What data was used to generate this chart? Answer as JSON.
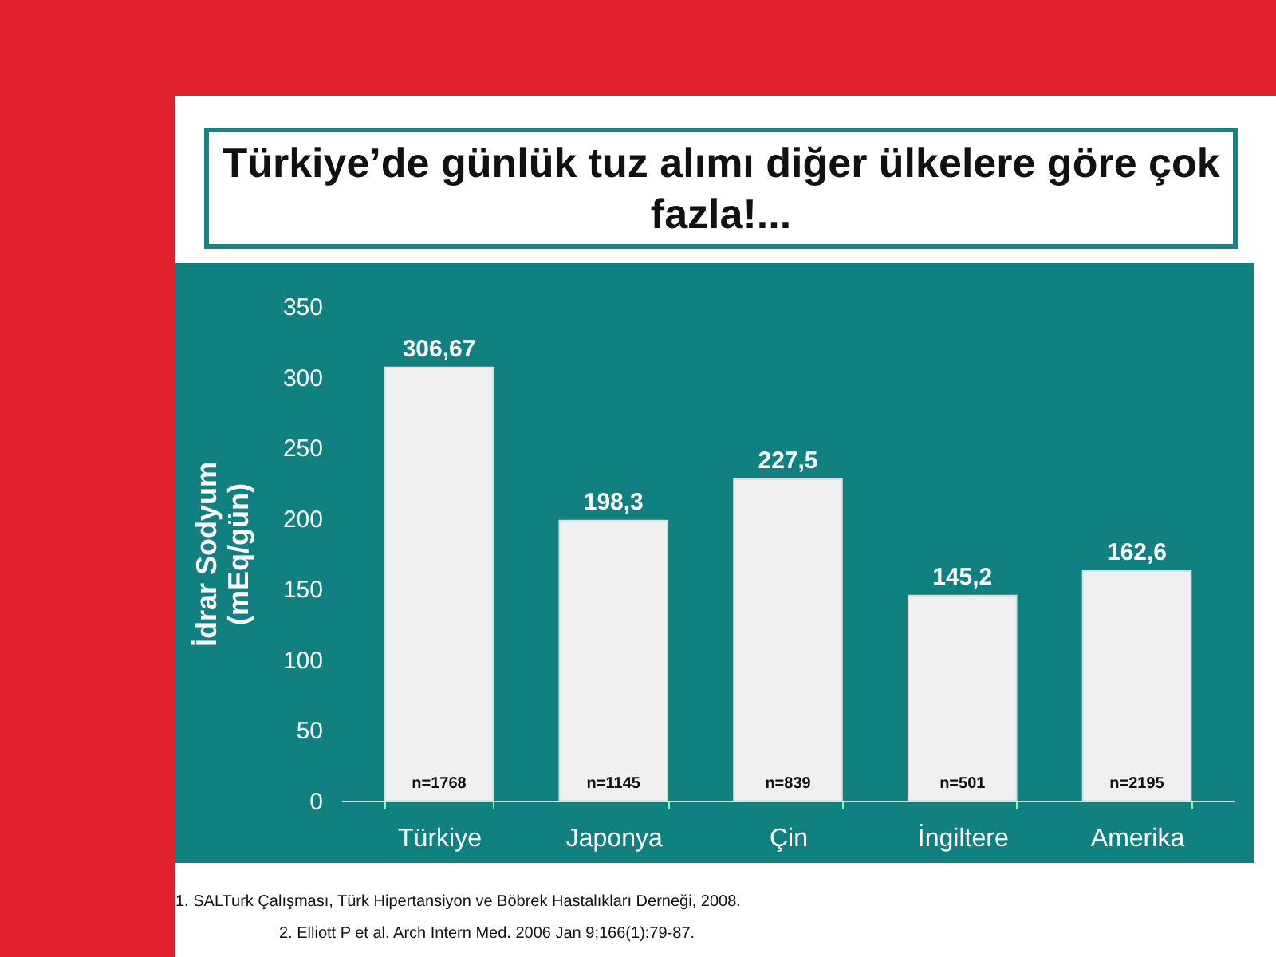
{
  "chart_data": {
    "type": "bar",
    "title": "Türkiye’de günlük tuz alımı diğer ülkelere göre çok fazla!...",
    "ylabel": "İdrar Sodyum (mEq/gün)",
    "categories": [
      "Türkiye",
      "Japonya",
      "Çin",
      "İngiltere",
      "Amerika"
    ],
    "values": [
      306.67,
      198.3,
      227.5,
      145.2,
      162.6
    ],
    "value_labels": [
      "306,67",
      "198,3",
      "227,5",
      "145,2",
      "162,6"
    ],
    "color": "#f0f0f0",
    "ylim": [
      0,
      350
    ],
    "yticks": [
      0,
      50,
      100,
      150,
      200,
      250,
      300,
      350
    ],
    "annotations": [
      "n=1768",
      "n=1145",
      "n=839",
      "n=501",
      "n=2195",
      "1. SALTurk Çalışması, Türk Hipertansiyon ve Böbrek Hastalıkları Derneği, 2008.",
      "2. Elliott P et al. Arch Intern Med. 2006 Jan 9;166(1):79-87."
    ]
  }
}
